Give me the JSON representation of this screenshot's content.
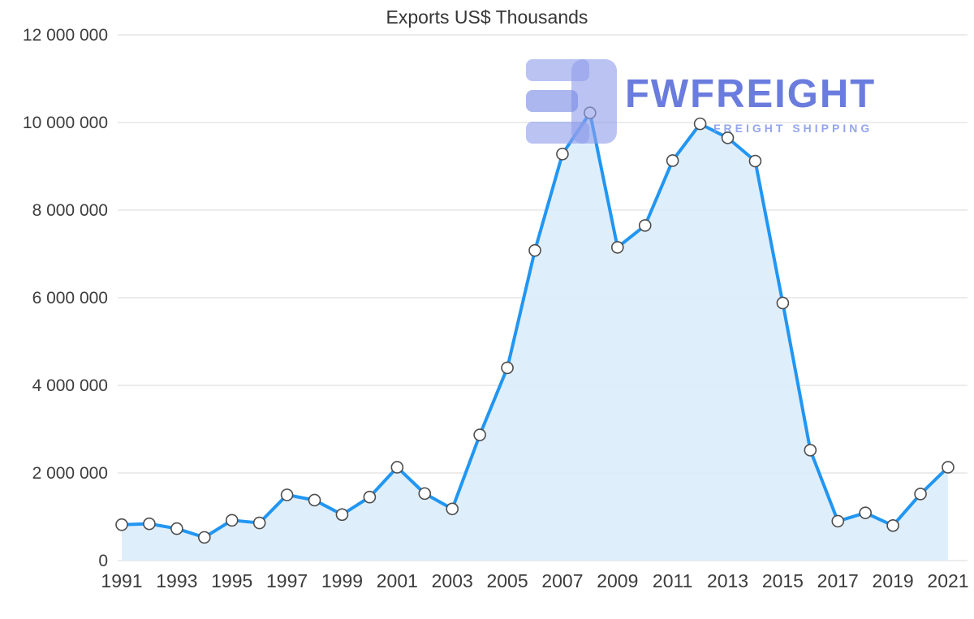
{
  "chart_data": {
    "type": "area",
    "title": "Exports US$ Thousands",
    "xlabel": "",
    "ylabel": "",
    "x": [
      1991,
      1992,
      1993,
      1994,
      1995,
      1996,
      1997,
      1998,
      1999,
      2000,
      2001,
      2002,
      2003,
      2004,
      2005,
      2006,
      2007,
      2008,
      2009,
      2010,
      2011,
      2012,
      2013,
      2014,
      2015,
      2016,
      2017,
      2018,
      2019,
      2020,
      2021
    ],
    "values": [
      820000,
      840000,
      730000,
      530000,
      920000,
      860000,
      1500000,
      1380000,
      1050000,
      1450000,
      2130000,
      1530000,
      1180000,
      2870000,
      4400000,
      7080000,
      9280000,
      10220000,
      7150000,
      7650000,
      9130000,
      9970000,
      9650000,
      9120000,
      5880000,
      2520000,
      900000,
      1090000,
      800000,
      1520000,
      2130000
    ],
    "series_name": "Exports US$ Thousands",
    "ylim": [
      0,
      12000000
    ],
    "grid": true,
    "legend": "none",
    "yticks": [
      {
        "value": 0,
        "label": "0"
      },
      {
        "value": 2000000,
        "label": "2 000 000"
      },
      {
        "value": 4000000,
        "label": "4 000 000"
      },
      {
        "value": 6000000,
        "label": "6 000 000"
      },
      {
        "value": 8000000,
        "label": "8 000 000"
      },
      {
        "value": 10000000,
        "label": "10 000 000"
      },
      {
        "value": 12000000,
        "label": "12 000 000"
      }
    ],
    "xticks": [
      1991,
      1993,
      1995,
      1997,
      1999,
      2001,
      2003,
      2005,
      2007,
      2009,
      2011,
      2013,
      2015,
      2017,
      2019,
      2021
    ],
    "colors": {
      "line": "#2196f3",
      "fill": "#dcecfb",
      "grid": "#d9d9d9",
      "marker_fill": "#ffffff",
      "marker_stroke": "#4d4d4d"
    }
  },
  "watermark": {
    "brand": "FWFREIGHT",
    "tagline": "FREIGHT SHIPPING",
    "brand_color": "#495fd6"
  }
}
